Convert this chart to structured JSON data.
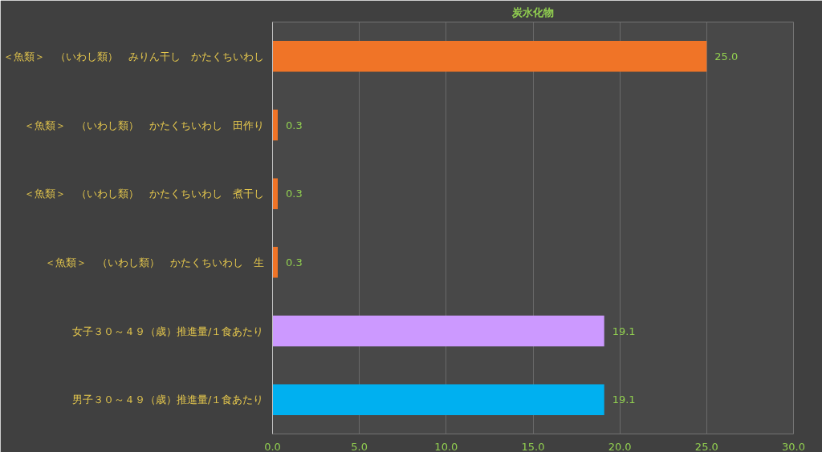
{
  "chart_data": {
    "type": "bar",
    "orientation": "horizontal",
    "title": "炭水化物",
    "categories": [
      "＜魚類＞　（いわし類）　みりん干し　かたくちいわし",
      "＜魚類＞　（いわし類）　かたくちいわし　田作り",
      "＜魚類＞　（いわし類）　かたくちいわし　煮干し",
      "＜魚類＞　（いわし類）　かたくちいわし　生",
      "女子３０～４９（歳）推進量/１食あたり",
      "男子３０～４９（歳）推進量/１食あたり"
    ],
    "values": [
      25.0,
      0.3,
      0.3,
      0.3,
      19.1,
      19.1
    ],
    "colors": [
      "#f07427",
      "#f07427",
      "#f07427",
      "#f07427",
      "#cc99ff",
      "#00b0f0"
    ],
    "value_labels": [
      "25.0",
      "0.3",
      "0.3",
      "0.3",
      "19.1",
      "19.1"
    ],
    "xlim": [
      0,
      30
    ],
    "xticks": [
      {
        "value": 0,
        "label": "0.0"
      },
      {
        "value": 5,
        "label": "5.0"
      },
      {
        "value": 10,
        "label": "10.0"
      },
      {
        "value": 15,
        "label": "15.0"
      },
      {
        "value": 20,
        "label": "20.0"
      },
      {
        "value": 25,
        "label": "25.0"
      },
      {
        "value": 30,
        "label": "30.0"
      }
    ],
    "grid": "x"
  }
}
